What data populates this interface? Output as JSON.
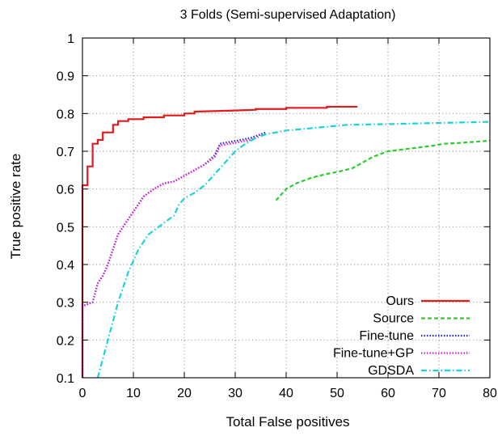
{
  "chart_data": {
    "type": "line",
    "title": "3 Folds (Semi-supervised Adaptation)",
    "xlabel": "Total False positives",
    "ylabel": "True positive rate",
    "xlim": [
      0,
      80
    ],
    "ylim": [
      0.1,
      1
    ],
    "xticks": [
      0,
      10,
      20,
      30,
      40,
      50,
      60,
      70,
      80
    ],
    "yticks": [
      0.1,
      0.2,
      0.3,
      0.4,
      0.5,
      0.6,
      0.7,
      0.8,
      0.9,
      1
    ],
    "grid": true,
    "legend_position": "bottom-right",
    "series": [
      {
        "name": "Ours",
        "color": "#e31a1c",
        "dash": "solid",
        "points": [
          [
            0,
            0.1
          ],
          [
            0,
            0.61
          ],
          [
            1,
            0.61
          ],
          [
            1,
            0.66
          ],
          [
            2,
            0.66
          ],
          [
            2,
            0.72
          ],
          [
            3,
            0.72
          ],
          [
            3,
            0.73
          ],
          [
            4,
            0.73
          ],
          [
            4,
            0.75
          ],
          [
            6,
            0.75
          ],
          [
            6,
            0.77
          ],
          [
            7,
            0.77
          ],
          [
            7,
            0.78
          ],
          [
            9,
            0.78
          ],
          [
            9,
            0.785
          ],
          [
            12,
            0.785
          ],
          [
            12,
            0.79
          ],
          [
            16,
            0.79
          ],
          [
            16,
            0.795
          ],
          [
            20,
            0.795
          ],
          [
            20,
            0.8
          ],
          [
            22,
            0.8
          ],
          [
            22,
            0.805
          ],
          [
            30,
            0.808
          ],
          [
            34,
            0.81
          ],
          [
            34,
            0.812
          ],
          [
            40,
            0.812
          ],
          [
            40,
            0.815
          ],
          [
            48,
            0.815
          ],
          [
            48,
            0.818
          ],
          [
            54,
            0.818
          ]
        ]
      },
      {
        "name": "Source",
        "color": "#2ecc2e",
        "dash": "dashed",
        "points": [
          [
            38,
            0.57
          ],
          [
            40,
            0.6
          ],
          [
            42,
            0.615
          ],
          [
            45,
            0.63
          ],
          [
            48,
            0.64
          ],
          [
            50,
            0.645
          ],
          [
            53,
            0.655
          ],
          [
            55,
            0.67
          ],
          [
            57,
            0.685
          ],
          [
            60,
            0.7
          ],
          [
            63,
            0.705
          ],
          [
            66,
            0.71
          ],
          [
            69,
            0.715
          ],
          [
            71,
            0.72
          ],
          [
            74,
            0.722
          ],
          [
            77,
            0.725
          ],
          [
            80,
            0.728
          ]
        ]
      },
      {
        "name": "Fine-tune",
        "color": "#2323c8",
        "dash": "dotted",
        "points": [
          [
            0,
            0.1
          ],
          [
            0,
            0.29
          ],
          [
            2,
            0.3
          ],
          [
            3,
            0.35
          ],
          [
            4,
            0.37
          ],
          [
            5,
            0.4
          ],
          [
            6,
            0.44
          ],
          [
            7,
            0.48
          ],
          [
            8,
            0.5
          ],
          [
            9,
            0.52
          ],
          [
            10,
            0.54
          ],
          [
            11,
            0.56
          ],
          [
            12,
            0.58
          ],
          [
            14,
            0.6
          ],
          [
            16,
            0.615
          ],
          [
            18,
            0.62
          ],
          [
            20,
            0.635
          ],
          [
            22,
            0.65
          ],
          [
            24,
            0.665
          ],
          [
            26,
            0.69
          ],
          [
            27,
            0.72
          ],
          [
            29,
            0.725
          ],
          [
            31,
            0.73
          ],
          [
            33,
            0.735
          ],
          [
            34,
            0.74
          ],
          [
            36,
            0.75
          ]
        ]
      },
      {
        "name": "Fine-tune+GP",
        "color": "#d81bd8",
        "dash": "dotted",
        "points": [
          [
            0,
            0.1
          ],
          [
            0,
            0.29
          ],
          [
            2,
            0.3
          ],
          [
            3,
            0.35
          ],
          [
            4,
            0.37
          ],
          [
            5,
            0.4
          ],
          [
            6,
            0.44
          ],
          [
            7,
            0.48
          ],
          [
            8,
            0.5
          ],
          [
            9,
            0.52
          ],
          [
            10,
            0.54
          ],
          [
            11,
            0.56
          ],
          [
            12,
            0.58
          ],
          [
            14,
            0.6
          ],
          [
            16,
            0.615
          ],
          [
            18,
            0.62
          ],
          [
            20,
            0.635
          ],
          [
            22,
            0.65
          ],
          [
            24,
            0.665
          ],
          [
            26,
            0.685
          ],
          [
            27,
            0.715
          ],
          [
            29,
            0.72
          ],
          [
            31,
            0.725
          ],
          [
            33,
            0.73
          ],
          [
            34,
            0.735
          ],
          [
            35,
            0.745
          ]
        ]
      },
      {
        "name": "GDSDA",
        "color": "#1ad3d8",
        "dash": "dashdot",
        "points": [
          [
            3,
            0.1
          ],
          [
            5,
            0.2
          ],
          [
            7,
            0.3
          ],
          [
            9,
            0.38
          ],
          [
            11,
            0.44
          ],
          [
            13,
            0.48
          ],
          [
            16,
            0.51
          ],
          [
            18,
            0.53
          ],
          [
            19,
            0.56
          ],
          [
            20,
            0.575
          ],
          [
            22,
            0.59
          ],
          [
            24,
            0.61
          ],
          [
            26,
            0.64
          ],
          [
            28,
            0.67
          ],
          [
            30,
            0.7
          ],
          [
            32,
            0.72
          ],
          [
            34,
            0.735
          ],
          [
            36,
            0.745
          ],
          [
            40,
            0.755
          ],
          [
            44,
            0.76
          ],
          [
            48,
            0.765
          ],
          [
            52,
            0.77
          ],
          [
            60,
            0.772
          ],
          [
            70,
            0.775
          ],
          [
            80,
            0.778
          ]
        ]
      }
    ]
  }
}
